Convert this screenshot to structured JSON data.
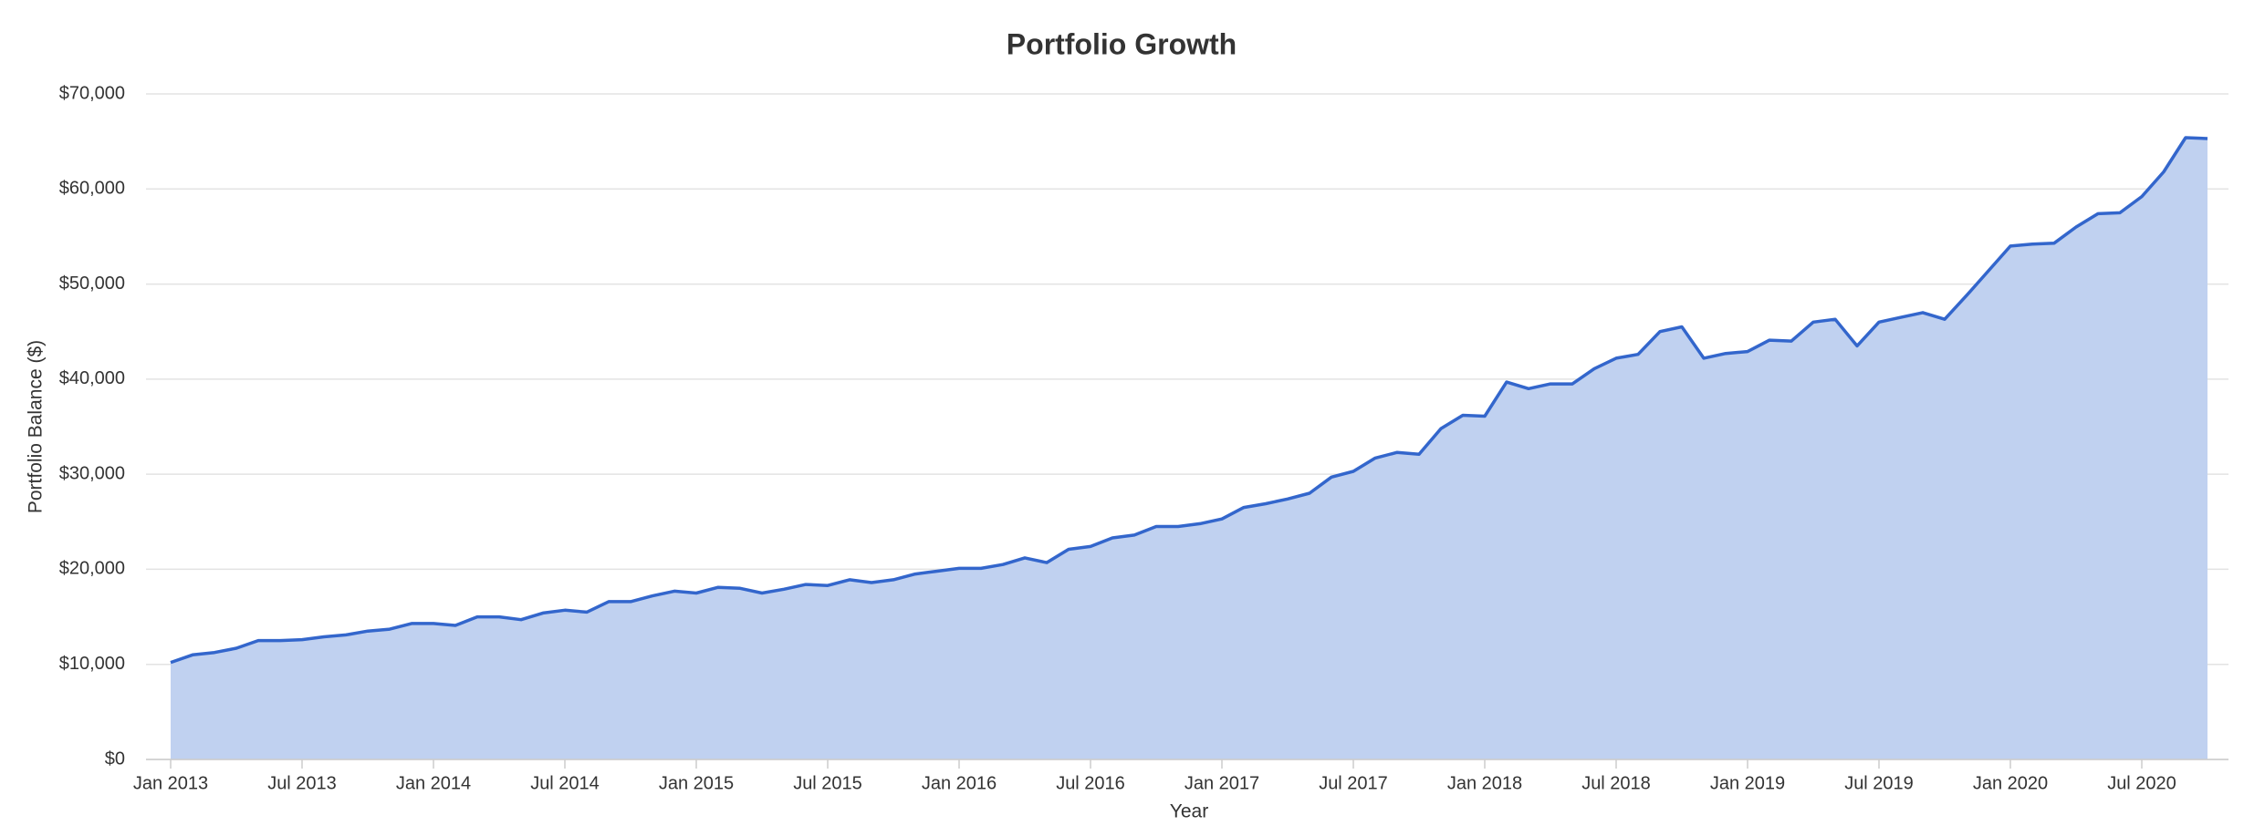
{
  "chart_data": {
    "type": "area",
    "title": "Portfolio Growth",
    "x_label": "Year",
    "y_label": "Portfolio Balance ($)",
    "x": [
      "2013-01",
      "2013-02",
      "2013-03",
      "2013-04",
      "2013-05",
      "2013-06",
      "2013-07",
      "2013-08",
      "2013-09",
      "2013-10",
      "2013-11",
      "2013-12",
      "2014-01",
      "2014-02",
      "2014-03",
      "2014-04",
      "2014-05",
      "2014-06",
      "2014-07",
      "2014-08",
      "2014-09",
      "2014-10",
      "2014-11",
      "2014-12",
      "2015-01",
      "2015-02",
      "2015-03",
      "2015-04",
      "2015-05",
      "2015-06",
      "2015-07",
      "2015-08",
      "2015-09",
      "2015-10",
      "2015-11",
      "2015-12",
      "2016-01",
      "2016-02",
      "2016-03",
      "2016-04",
      "2016-05",
      "2016-06",
      "2016-07",
      "2016-08",
      "2016-09",
      "2016-10",
      "2016-11",
      "2016-12",
      "2017-01",
      "2017-02",
      "2017-03",
      "2017-04",
      "2017-05",
      "2017-06",
      "2017-07",
      "2017-08",
      "2017-09",
      "2017-10",
      "2017-11",
      "2017-12",
      "2018-01",
      "2018-02",
      "2018-03",
      "2018-04",
      "2018-05",
      "2018-06",
      "2018-07",
      "2018-08",
      "2018-09",
      "2018-10",
      "2018-11",
      "2018-12",
      "2019-01",
      "2019-02",
      "2019-03",
      "2019-04",
      "2019-05",
      "2019-06",
      "2019-07",
      "2019-08",
      "2019-09",
      "2019-10",
      "2019-11",
      "2019-12",
      "2020-01",
      "2020-02",
      "2020-03",
      "2020-04",
      "2020-05",
      "2020-06",
      "2020-07",
      "2020-08",
      "2020-09",
      "2020-10"
    ],
    "series": [
      {
        "name": "Portfolio Balance",
        "color": "#3366cc",
        "fill": "#c0d1f0",
        "values": [
          10200,
          11000,
          11250,
          11700,
          12500,
          12500,
          12600,
          12900,
          13100,
          13500,
          13700,
          14300,
          14300,
          14100,
          15000,
          15000,
          14700,
          15400,
          15700,
          15500,
          16600,
          16600,
          17200,
          17700,
          17500,
          18100,
          18000,
          17500,
          17900,
          18400,
          18300,
          18900,
          18600,
          18900,
          19500,
          19800,
          20100,
          20100,
          20500,
          21200,
          20700,
          22100,
          22400,
          23300,
          23600,
          24500,
          24500,
          24800,
          25300,
          26500,
          26900,
          27400,
          28000,
          29700,
          30300,
          31700,
          32300,
          32100,
          34800,
          36200,
          36100,
          39700,
          39000,
          39500,
          39500,
          41100,
          42200,
          42600,
          45000,
          45500,
          42200,
          42700,
          42900,
          44100,
          44000,
          46000,
          46300,
          43500,
          46000,
          46500,
          47000,
          46300,
          48800,
          51400,
          54000,
          54200,
          54300,
          56000,
          57400,
          57500,
          59200,
          61800,
          65400,
          65300
        ]
      }
    ],
    "xlim": [
      "2013-01",
      "2020-10"
    ],
    "xticks": [
      {
        "value": "2013-01",
        "label": "Jan 2013"
      },
      {
        "value": "2013-07",
        "label": "Jul 2013"
      },
      {
        "value": "2014-01",
        "label": "Jan 2014"
      },
      {
        "value": "2014-07",
        "label": "Jul 2014"
      },
      {
        "value": "2015-01",
        "label": "Jan 2015"
      },
      {
        "value": "2015-07",
        "label": "Jul 2015"
      },
      {
        "value": "2016-01",
        "label": "Jan 2016"
      },
      {
        "value": "2016-07",
        "label": "Jul 2016"
      },
      {
        "value": "2017-01",
        "label": "Jan 2017"
      },
      {
        "value": "2017-07",
        "label": "Jul 2017"
      },
      {
        "value": "2018-01",
        "label": "Jan 2018"
      },
      {
        "value": "2018-07",
        "label": "Jul 2018"
      },
      {
        "value": "2019-01",
        "label": "Jan 2019"
      },
      {
        "value": "2019-07",
        "label": "Jul 2019"
      },
      {
        "value": "2020-01",
        "label": "Jan 2020"
      },
      {
        "value": "2020-07",
        "label": "Jul 2020"
      }
    ],
    "ylim": [
      0,
      70000
    ],
    "yticks": [
      {
        "value": 0,
        "label": "$0"
      },
      {
        "value": 10000,
        "label": "$10,000"
      },
      {
        "value": 20000,
        "label": "$20,000"
      },
      {
        "value": 30000,
        "label": "$30,000"
      },
      {
        "value": 40000,
        "label": "$40,000"
      },
      {
        "value": 50000,
        "label": "$50,000"
      },
      {
        "value": 60000,
        "label": "$60,000"
      },
      {
        "value": 70000,
        "label": "$70,000"
      }
    ],
    "grid": true
  }
}
